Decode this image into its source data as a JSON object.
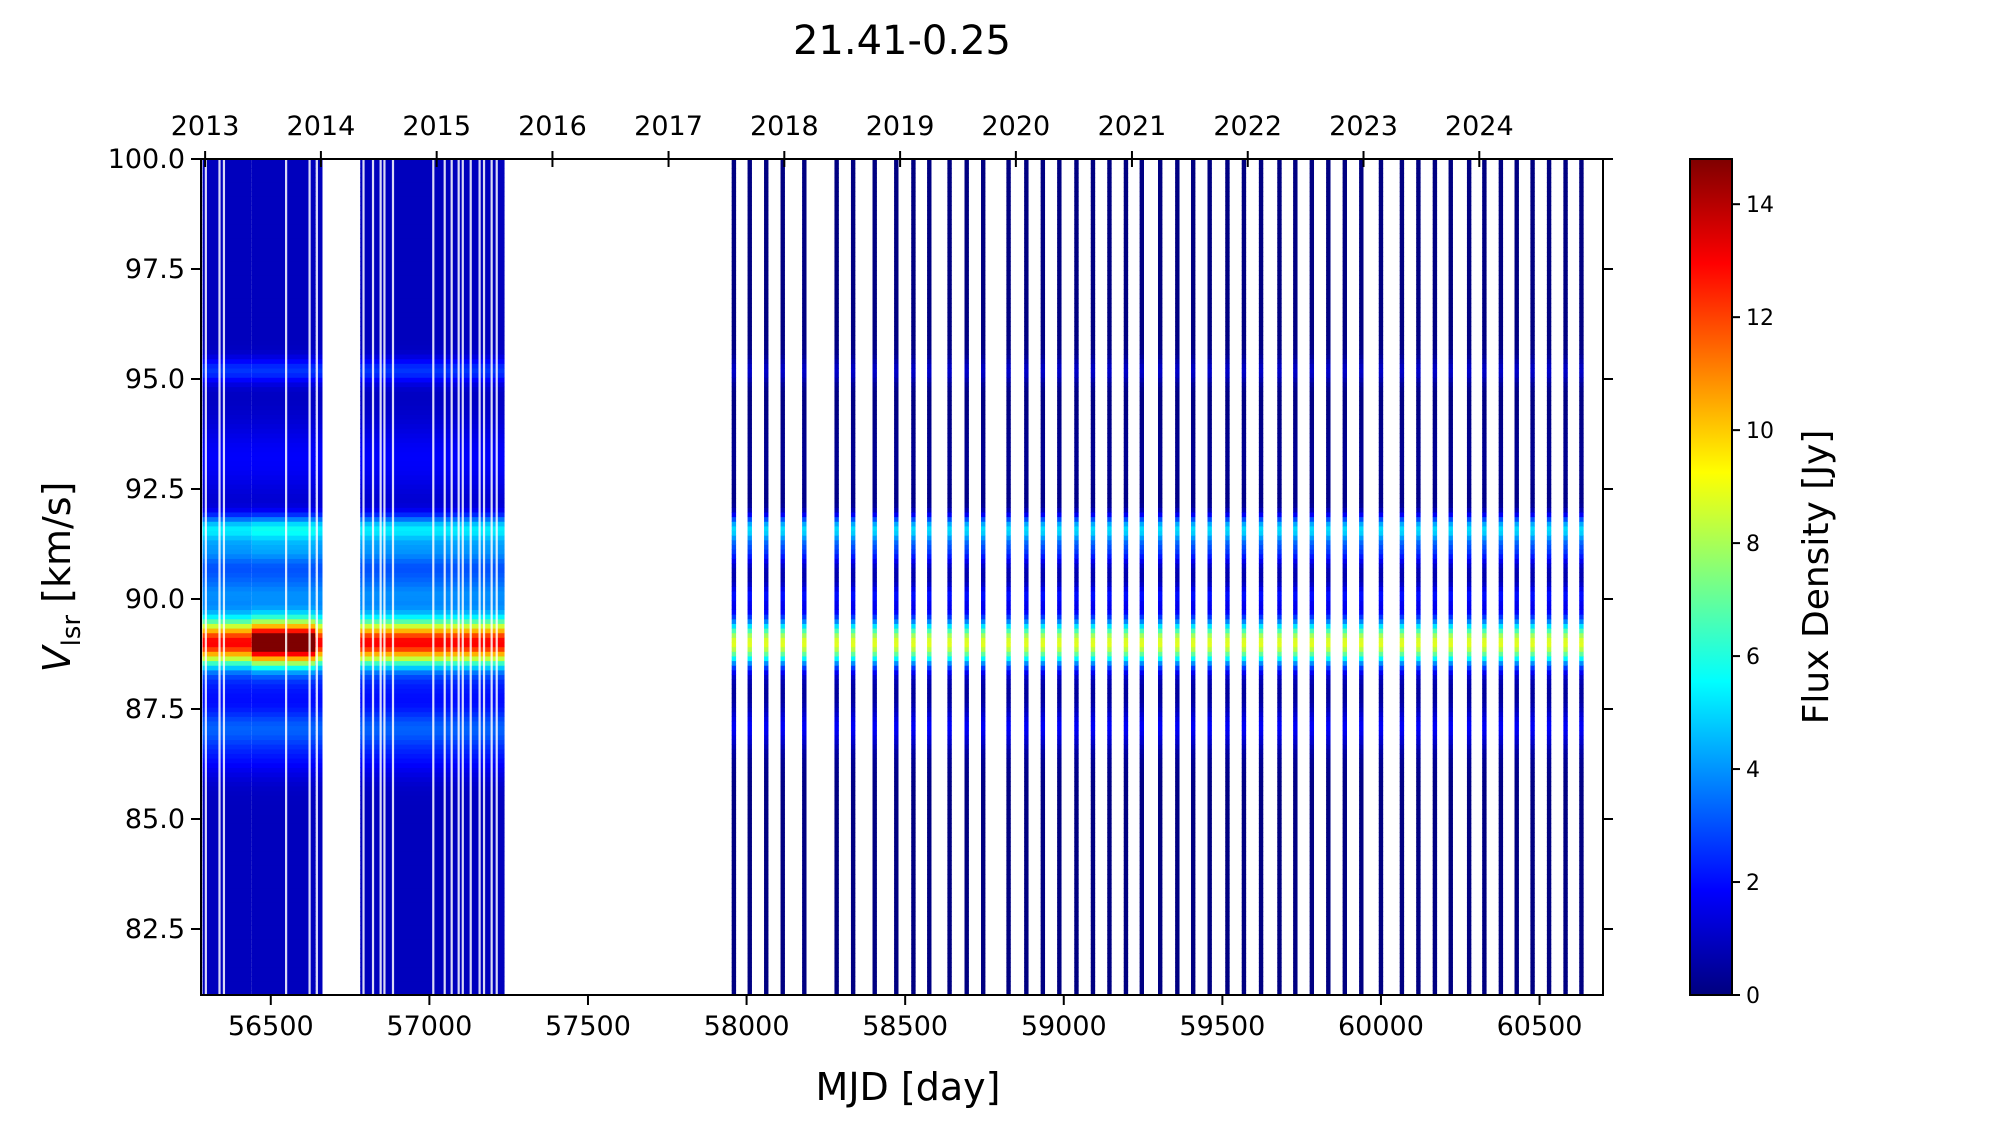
{
  "chart_data": {
    "type": "heatmap",
    "title": "21.41-0.25",
    "xlabel": "MJD [day]",
    "ylabel_main": "V",
    "ylabel_sub": "lsr",
    "ylabel_unit": " [km/s]",
    "colorbar_label": "Flux Density [Jy]",
    "colormap": "jet",
    "colormap_stops": [
      "#00007f",
      "#0000ff",
      "#007fff",
      "#00ffff",
      "#7fff7f",
      "#ffff00",
      "#ff7f00",
      "#ff0000",
      "#7f0000"
    ],
    "background_color": "#ffffff",
    "xlim": [
      56280,
      60700
    ],
    "ylim": [
      81.0,
      100.0
    ],
    "clim": [
      0,
      14.8
    ],
    "x_ticks": [
      56500,
      57000,
      57500,
      58000,
      58500,
      59000,
      59500,
      60000,
      60500
    ],
    "x_tick_labels": [
      "56500",
      "57000",
      "57500",
      "58000",
      "58500",
      "59000",
      "59500",
      "60000",
      "60500"
    ],
    "y_ticks": [
      82.5,
      85.0,
      87.5,
      90.0,
      92.5,
      95.0,
      97.5,
      100.0
    ],
    "y_tick_labels": [
      "82.5",
      "85.0",
      "87.5",
      "90.0",
      "92.5",
      "95.0",
      "97.5",
      "100.0"
    ],
    "top_axis_ticks_mjd": [
      56293,
      56658,
      57023,
      57388,
      57754,
      58119,
      58484,
      58849,
      59215,
      59580,
      59945,
      60310
    ],
    "top_axis_labels": [
      "2013",
      "2014",
      "2015",
      "2016",
      "2017",
      "2018",
      "2019",
      "2020",
      "2021",
      "2022",
      "2023",
      "2024"
    ],
    "colorbar_ticks": [
      0,
      2,
      4,
      6,
      8,
      10,
      12,
      14
    ],
    "colorbar_tick_labels": [
      "0",
      "2",
      "4",
      "6",
      "8",
      "10",
      "12",
      "14"
    ],
    "observations": {
      "dense_blocks": [
        {
          "mjd_start": 56285,
          "mjd_end": 56663
        },
        {
          "mjd_start": 56782,
          "mjd_end": 57237
        }
      ],
      "dense_block_gaps_mjd": [
        56295,
        56338,
        56352,
        56548,
        56622,
        56645,
        56792,
        56822,
        56846,
        56858,
        56885,
        57012,
        57048,
        57070,
        57092,
        57105,
        57130,
        57158,
        57172,
        57196,
        57212
      ],
      "sparse_epochs_mjd": [
        57960,
        58010,
        58062,
        58114,
        58182,
        58284,
        58336,
        58404,
        58472,
        58526,
        58576,
        58640,
        58694,
        58746,
        58826,
        58882,
        58934,
        58986,
        59040,
        59092,
        59144,
        59196,
        59246,
        59304,
        59358,
        59408,
        59460,
        59516,
        59568,
        59622,
        59680,
        59730,
        59782,
        59834,
        59886,
        59938,
        60000,
        60066,
        60118,
        60170,
        60220,
        60278,
        60326,
        60378,
        60428,
        60478,
        60530,
        60582,
        60632
      ]
    },
    "emission_components": [
      {
        "velocity": 89.0,
        "width": 0.35,
        "flux_dense_peak": 14.8,
        "flux_dense_base": 11.5,
        "flux_sparse": 8.6
      },
      {
        "velocity": 91.6,
        "width": 0.22,
        "flux_dense_peak": 4.6,
        "flux_dense_base": 4.2,
        "flux_sparse": 4.8
      },
      {
        "velocity": 91.1,
        "width": 0.22,
        "flux_dense_peak": 2.6,
        "flux_dense_base": 2.4,
        "flux_sparse": 2.2
      },
      {
        "velocity": 89.8,
        "width": 0.5,
        "flux_dense_peak": 2.0,
        "flux_dense_base": 2.0,
        "flux_sparse": 0.7
      },
      {
        "velocity": 90.5,
        "width": 0.35,
        "flux_dense_peak": 1.5,
        "flux_dense_base": 1.5,
        "flux_sparse": 0.3
      },
      {
        "velocity": 95.2,
        "width": 0.2,
        "flux_dense_peak": 1.7,
        "flux_dense_base": 1.7,
        "flux_sparse": 1.0
      },
      {
        "velocity": 87.1,
        "width": 0.3,
        "flux_dense_peak": 1.9,
        "flux_dense_base": 1.9,
        "flux_sparse": 1.6
      },
      {
        "velocity": 86.5,
        "width": 0.4,
        "flux_dense_peak": 1.1,
        "flux_dense_base": 1.1,
        "flux_sparse": 0.2
      },
      {
        "velocity": 88.0,
        "width": 0.4,
        "flux_dense_peak": 1.1,
        "flux_dense_base": 1.1,
        "flux_sparse": 0.3
      },
      {
        "velocity": 93.2,
        "width": 0.6,
        "flux_dense_peak": 0.9,
        "flux_dense_base": 0.9,
        "flux_sparse": 0.2
      },
      {
        "velocity": 90.1,
        "width": 0.15,
        "flux_dense_peak": 0.5,
        "flux_dense_base": 0.5,
        "flux_sparse": 1.2
      }
    ],
    "dense_peak_mjd_range": [
      56440,
      56640
    ],
    "noise_floor": 0.9
  }
}
